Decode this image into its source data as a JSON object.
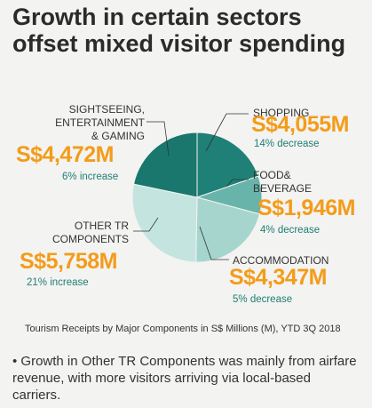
{
  "chart_data": {
    "type": "pie",
    "title": "Growth in certain sectors offset mixed visitor spending",
    "caption": "Tourism Receipts by Major Components in S$ Millions (M), YTD 3Q 2018",
    "note": "• Growth in Other TR Components was mainly from airfare revenue, with more visitors arriving via local-based carriers.",
    "categories": [
      "SHOPPING",
      "FOOD&\nBEVERAGE",
      "ACCOMMODATION",
      "OTHER TR\nCOMPONENTS",
      "SIGHTSEEING,\nENTERTAINMENT\n& GAMING"
    ],
    "values": [
      4055,
      1946,
      4347,
      5758,
      4472
    ],
    "value_labels": [
      "S$4,055M",
      "S$1,946M",
      "S$4,347M",
      "S$5,758M",
      "S$4,472M"
    ],
    "changes": [
      "14% decrease",
      "4% decrease",
      "5% decrease",
      "21% increase",
      "6% increase"
    ],
    "colors": [
      "#1e8076",
      "#68b4aa",
      "#a6d5ce",
      "#c4e4df",
      "#1a776d"
    ]
  }
}
